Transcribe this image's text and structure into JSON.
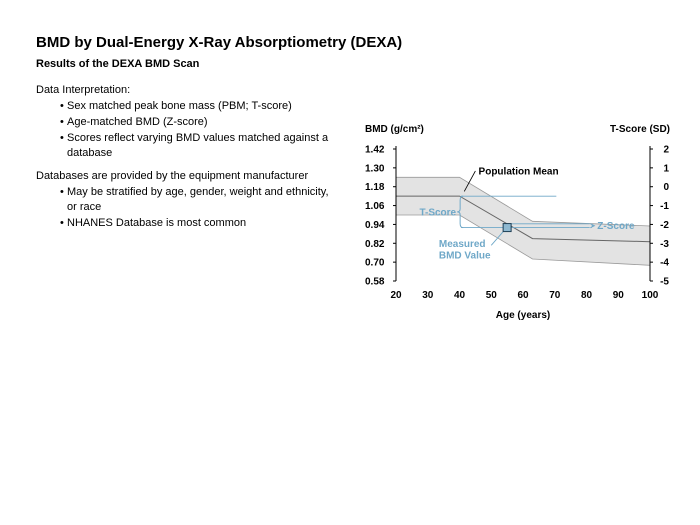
{
  "slide": {
    "title": "BMD by Dual-Energy X-Ray Absorptiometry (DEXA)",
    "subtitle": "Results of the DEXA BMD Scan"
  },
  "sections": [
    {
      "heading": "Data Interpretation:",
      "bullets": [
        "Sex matched peak bone mass (PBM; T-score)",
        "Age-matched BMD (Z-score)",
        "Scores reflect varying BMD values matched against a database"
      ]
    },
    {
      "heading": "Databases are provided by the equipment manufacturer",
      "bullets": [
        "May be stratified by age, gender, weight and ethnicity, or race",
        "NHANES Database is most common"
      ]
    }
  ],
  "chart_data": {
    "type": "area",
    "xlabel": "Age (years)",
    "ylabel": "BMD (g/cm²)",
    "y2label": "T-Score (SD)",
    "xlim": [
      20,
      100
    ],
    "ylim": [
      0.58,
      1.42
    ],
    "y2lim": [
      -5,
      2
    ],
    "xticks": [
      20,
      30,
      40,
      50,
      60,
      70,
      80,
      90,
      100
    ],
    "yticks": [
      "1.42",
      "1.30",
      "1.18",
      "1.06",
      "0.94",
      "0.82",
      "0.70",
      "0.58"
    ],
    "y2ticks": [
      "2",
      "1",
      "0",
      "-1",
      "-2",
      "-3",
      "-4",
      "-5"
    ],
    "series": [
      {
        "name": "Population Mean",
        "x": [
          20,
          40,
          63,
          100
        ],
        "y": [
          1.12,
          1.12,
          0.85,
          0.83
        ],
        "band_upper": [
          1.24,
          1.24,
          0.96,
          0.93
        ],
        "band_lower": [
          1.0,
          1.0,
          0.72,
          0.68
        ]
      }
    ],
    "points": [
      {
        "name": "Measured BMD Value",
        "x": 55,
        "y": 0.92
      }
    ],
    "annotations": {
      "population_mean": "Population Mean",
      "t_score": "T-Score",
      "z_score": "Z-Score",
      "measured_line1": "Measured",
      "measured_line2": "BMD Value"
    },
    "colors": {
      "band_fill": "#e3e3e3",
      "band_edge": "#9a9a9a",
      "mean_line": "#666666",
      "annotation": "#6fa8c8",
      "marker_fill": "#8fb9d1",
      "marker_stroke": "#1f3f55"
    }
  }
}
